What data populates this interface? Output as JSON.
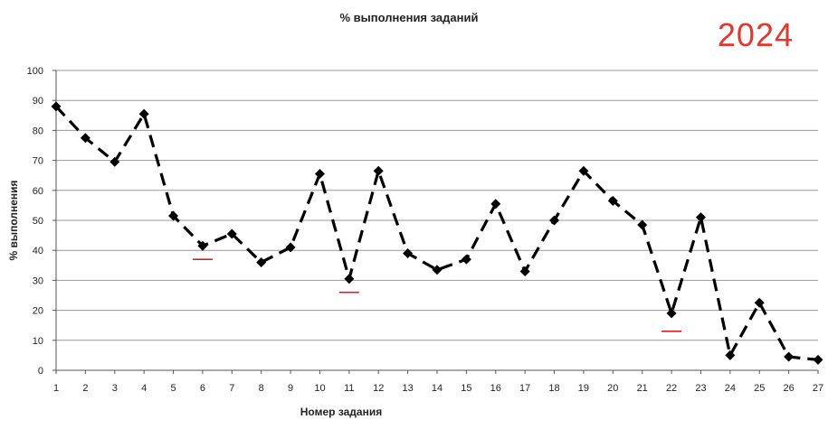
{
  "year_label": "2024",
  "chart_data": {
    "type": "line",
    "title": "% выполнения заданий",
    "xlabel": "Номер задания",
    "ylabel": "% выполнения",
    "categories": [
      "1",
      "2",
      "3",
      "4",
      "5",
      "6",
      "7",
      "8",
      "9",
      "10",
      "11",
      "12",
      "13",
      "14",
      "15",
      "16",
      "17",
      "18",
      "19",
      "20",
      "21",
      "22",
      "23",
      "24",
      "25",
      "26",
      "27"
    ],
    "series": [
      {
        "values": [
          88,
          77.5,
          69.5,
          85.5,
          51.5,
          41.5,
          45.5,
          36,
          41,
          65.5,
          30.5,
          66.5,
          39,
          33.5,
          37,
          55.5,
          33,
          50,
          66.5,
          56.5,
          48.5,
          19,
          51,
          5,
          22.5,
          4.5,
          3.5
        ],
        "line_style": "dashed",
        "marker": "diamond",
        "color": "#000000"
      }
    ],
    "ylim": [
      0,
      100
    ],
    "yticks": [
      0,
      10,
      20,
      30,
      40,
      50,
      60,
      70,
      80,
      90,
      100
    ],
    "grid": "horizontal",
    "legend": "none",
    "annotations": [
      {
        "type": "red-underline",
        "at_task": "6",
        "y": 37,
        "color": "#d0202a"
      },
      {
        "type": "red-underline",
        "at_task": "11",
        "y": 26,
        "color": "#d0202a"
      },
      {
        "type": "red-underline",
        "at_task": "22",
        "y": 13,
        "color": "#d0202a"
      }
    ]
  }
}
